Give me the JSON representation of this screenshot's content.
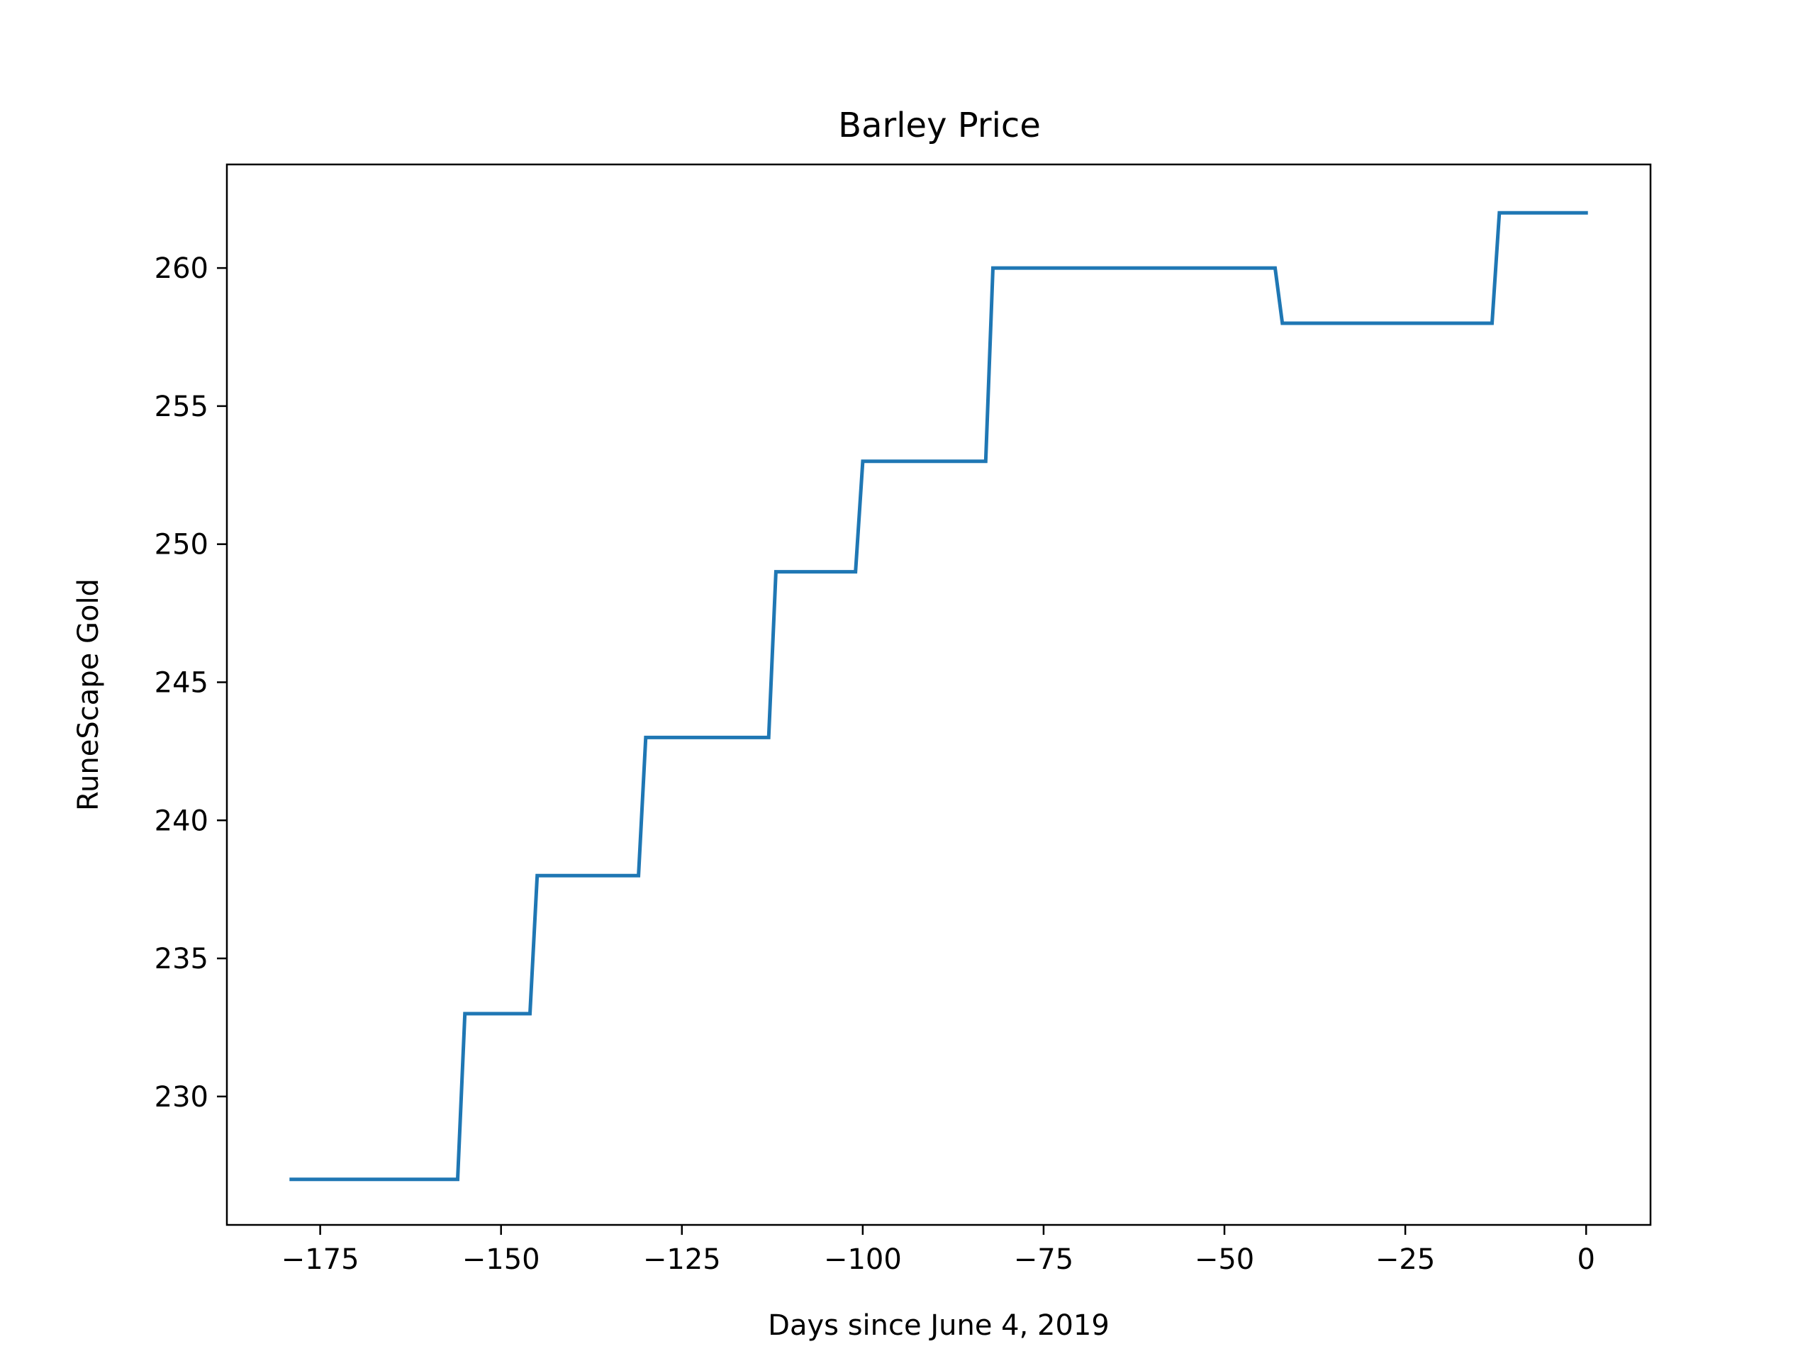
{
  "chart_data": {
    "type": "line",
    "title": "Barley Price",
    "xlabel": "Days since June 4, 2019",
    "ylabel": "RuneScape Gold",
    "xlim": [
      -187.9,
      8.9
    ],
    "ylim": [
      225.35,
      263.75
    ],
    "xticks": [
      -175,
      -150,
      -125,
      -100,
      -75,
      -50,
      -25,
      0
    ],
    "xtick_labels": [
      "−175",
      "−150",
      "−125",
      "−100",
      "−75",
      "−50",
      "−25",
      "0"
    ],
    "yticks": [
      230,
      235,
      240,
      245,
      250,
      255,
      260
    ],
    "ytick_labels": [
      "230",
      "235",
      "240",
      "245",
      "250",
      "255",
      "260"
    ],
    "grid": false,
    "series": [
      {
        "color": "#1f77b4",
        "x": [
          -179,
          -156,
          -155,
          -146,
          -145,
          -131,
          -130,
          -113,
          -112,
          -101,
          -100,
          -83,
          -82,
          -43,
          -42,
          -13,
          -12,
          0
        ],
        "y": [
          227,
          227,
          233,
          233,
          238,
          238,
          243,
          243,
          249,
          249,
          253,
          253,
          260,
          260,
          258,
          258,
          262,
          262
        ]
      }
    ]
  }
}
